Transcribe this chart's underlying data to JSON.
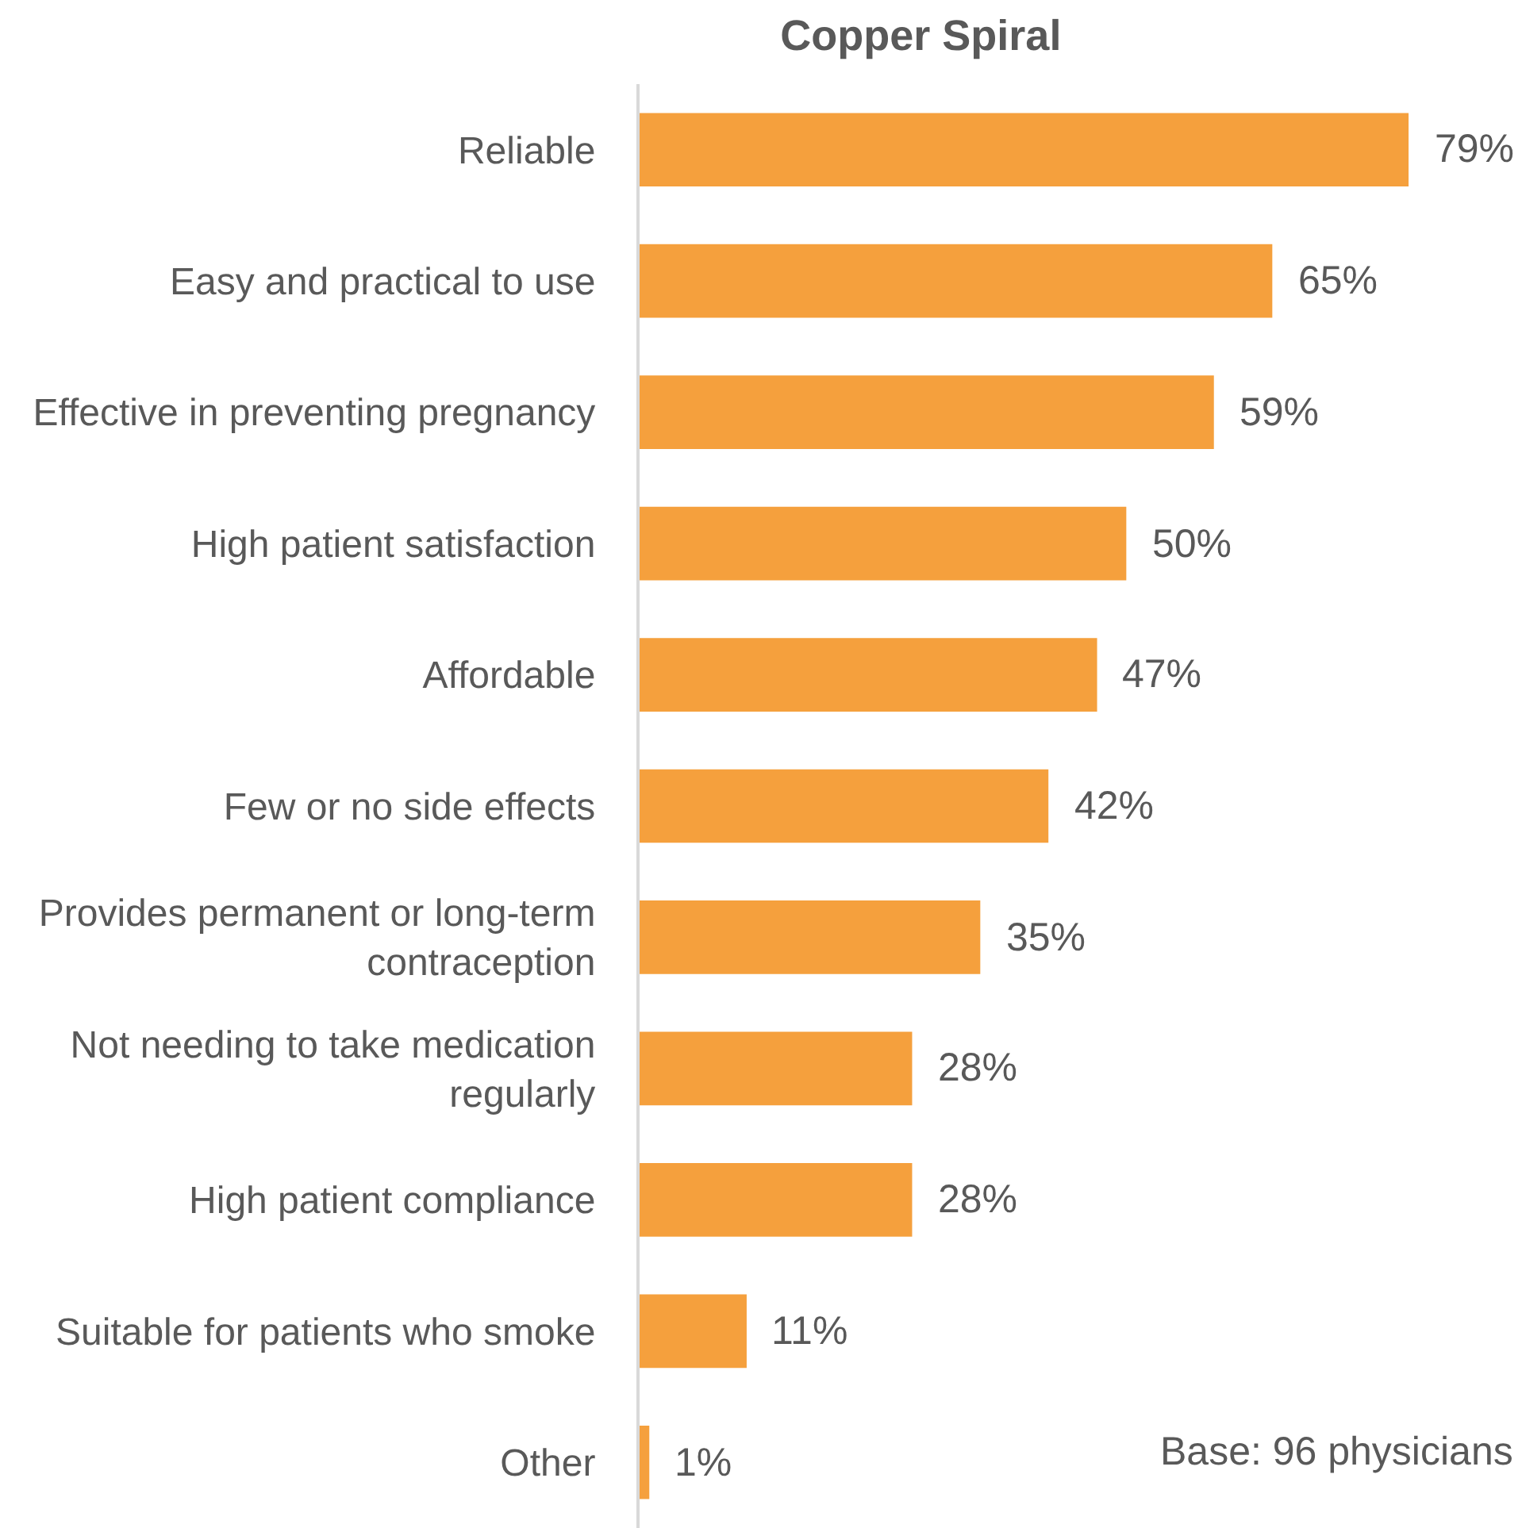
{
  "chart_data": {
    "type": "bar",
    "orientation": "horizontal",
    "title": "Copper Spiral",
    "categories": [
      "Reliable",
      "Easy and practical to use",
      "Effective in preventing pregnancy",
      "High patient satisfaction",
      "Affordable",
      "Few or no side effects",
      "Provides permanent or long-term\ncontraception",
      "Not needing to take medication\nregularly",
      "High patient compliance",
      "Suitable for patients who smoke",
      "Other"
    ],
    "values": [
      79,
      65,
      59,
      50,
      47,
      42,
      35,
      28,
      28,
      11,
      1
    ],
    "value_labels": [
      "79%",
      "65%",
      "59%",
      "50%",
      "47%",
      "42%",
      "35%",
      "28%",
      "28%",
      "11%",
      "1%"
    ],
    "color": "#f5a03d",
    "xlim": [
      0,
      90
    ],
    "tick_labels": "y",
    "annotations": [
      "Base: 96 physicians"
    ]
  }
}
